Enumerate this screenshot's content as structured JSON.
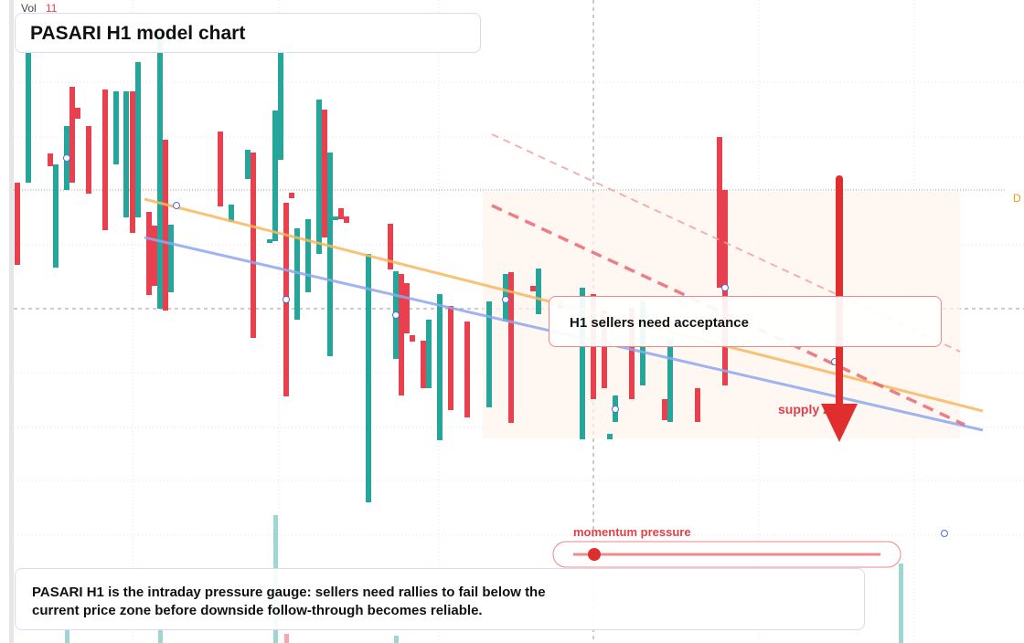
{
  "header": {
    "vol_label": "Vol",
    "vol_value": "11",
    "title": "PASARI H1 model chart"
  },
  "annotations": {
    "callout": "H1 sellers need acceptance",
    "zone_label": "supply zone",
    "slider_label": "momentum pressure",
    "edge_label": "D"
  },
  "footer": {
    "text": "PASARI H1 is the intraday pressure gauge: sellers need rallies to fail below the current price zone before downside follow-through becomes reliable."
  }
}
